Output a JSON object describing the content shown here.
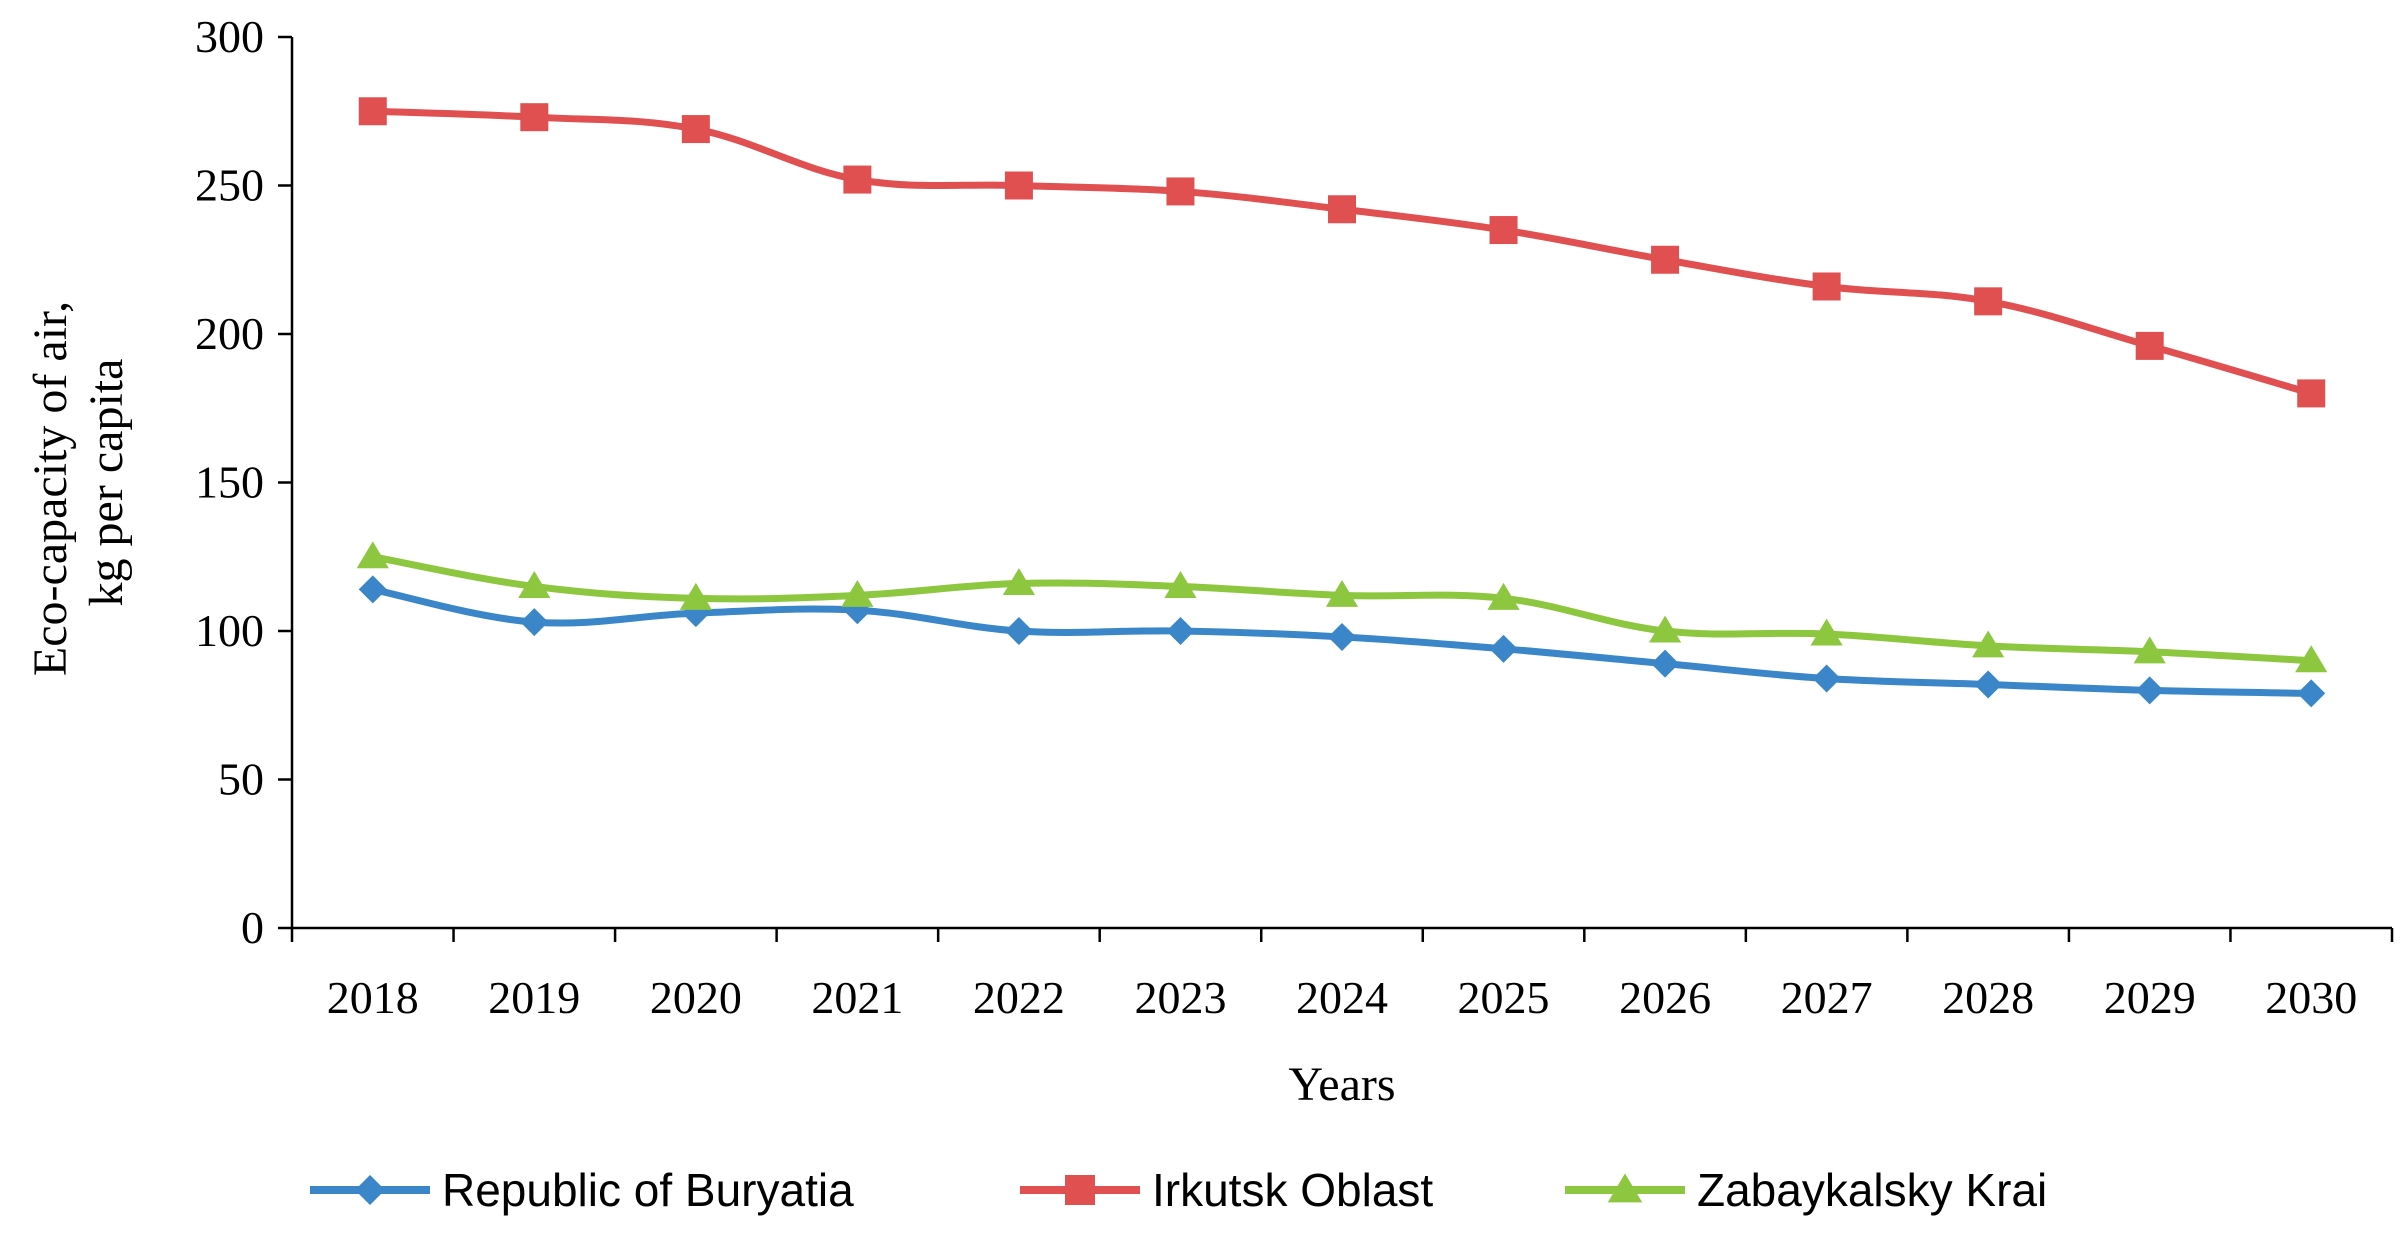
{
  "chart_data": {
    "type": "line",
    "xlabel": "Years",
    "ylabel_lines": [
      "Eco-capacity of air,",
      "kg per capita"
    ],
    "x": [
      "2018",
      "2019",
      "2020",
      "2021",
      "2022",
      "2023",
      "2024",
      "2025",
      "2026",
      "2027",
      "2028",
      "2029",
      "2030"
    ],
    "ylim": [
      0,
      300
    ],
    "yticks": [
      "0",
      "50",
      "100",
      "150",
      "200",
      "250",
      "300"
    ],
    "grid": false,
    "legend_position": "bottom",
    "series": [
      {
        "name": "Republic of Buryatia",
        "color": "#3a86c8",
        "marker": "diamond",
        "values": [
          114,
          103,
          106,
          107,
          100,
          100,
          98,
          94,
          89,
          84,
          82,
          80,
          79
        ]
      },
      {
        "name": "Irkutsk Oblast",
        "color": "#e05050",
        "marker": "square",
        "values": [
          275,
          273,
          269,
          252,
          250,
          248,
          242,
          235,
          225,
          216,
          211,
          196,
          180
        ]
      },
      {
        "name": "Zabaykalsky Krai",
        "color": "#8dc63f",
        "marker": "triangle",
        "values": [
          125,
          115,
          111,
          112,
          116,
          115,
          112,
          111,
          100,
          99,
          95,
          93,
          90
        ]
      }
    ]
  }
}
